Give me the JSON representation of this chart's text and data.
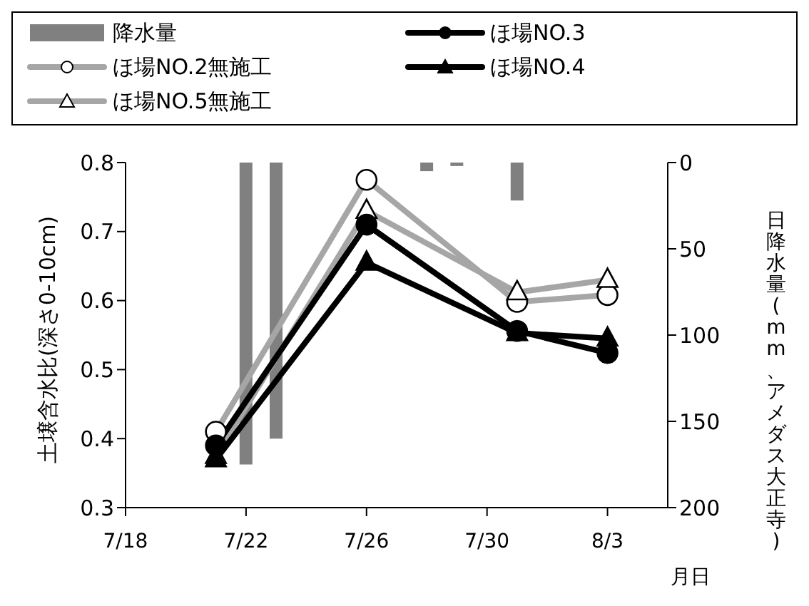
{
  "chart_data": {
    "type": "line",
    "xlabel": "月日",
    "ylabel": "土壌含水比(深さ0-10cm)",
    "y2label": "日降水量(mm、アメダス大正寺)",
    "series": [
      {
        "name": "降水量",
        "type": "bar",
        "axis": "y2",
        "color": "#808080",
        "x": [
          "--07-22",
          "--07-23",
          "--07-28",
          "--07-29",
          "--07-31"
        ],
        "values": [
          175,
          160,
          5,
          2,
          22
        ]
      },
      {
        "name": "ほ場NO.2無施工",
        "color": "#a6a6a6",
        "marker": "circle",
        "x": [
          "--07-21",
          "--07-26",
          "--07-31",
          "--08-03"
        ],
        "values": [
          0.41,
          0.775,
          0.598,
          0.608
        ]
      },
      {
        "name": "ほ場NO.5無施工",
        "color": "#a6a6a6",
        "marker": "triangle",
        "x": [
          "--07-21",
          "--07-26",
          "--07-31",
          "--08-03"
        ],
        "values": [
          0.375,
          0.73,
          0.612,
          0.63
        ]
      },
      {
        "name": "ほ場NO.3",
        "color": "#000000",
        "marker": "circle",
        "x": [
          "--07-21",
          "--07-26",
          "--07-31",
          "--08-03"
        ],
        "values": [
          0.39,
          0.71,
          0.556,
          0.524
        ]
      },
      {
        "name": "ほ場NO.4",
        "color": "#000000",
        "marker": "triangle",
        "x": [
          "--07-21",
          "--07-26",
          "--07-31",
          "--08-03"
        ],
        "values": [
          0.37,
          0.655,
          0.553,
          0.545
        ]
      }
    ],
    "xlim": [
      "--07-18",
      "--08-05"
    ],
    "xticks": [
      {
        "value": "--07-18",
        "label": "7/18"
      },
      {
        "value": "--07-22",
        "label": "7/22"
      },
      {
        "value": "--07-26",
        "label": "7/26"
      },
      {
        "value": "--07-30",
        "label": "7/30"
      },
      {
        "value": "--08-03",
        "label": "8/3"
      }
    ],
    "ylim": [
      0.3,
      0.8
    ],
    "yticks": [
      0.3,
      0.4,
      0.5,
      0.6,
      0.7,
      0.8
    ],
    "y2lim": [
      200,
      0
    ],
    "y2ticks": [
      0,
      50,
      100,
      150,
      200
    ],
    "grid": false,
    "legend": "top",
    "line_style": "solid"
  }
}
